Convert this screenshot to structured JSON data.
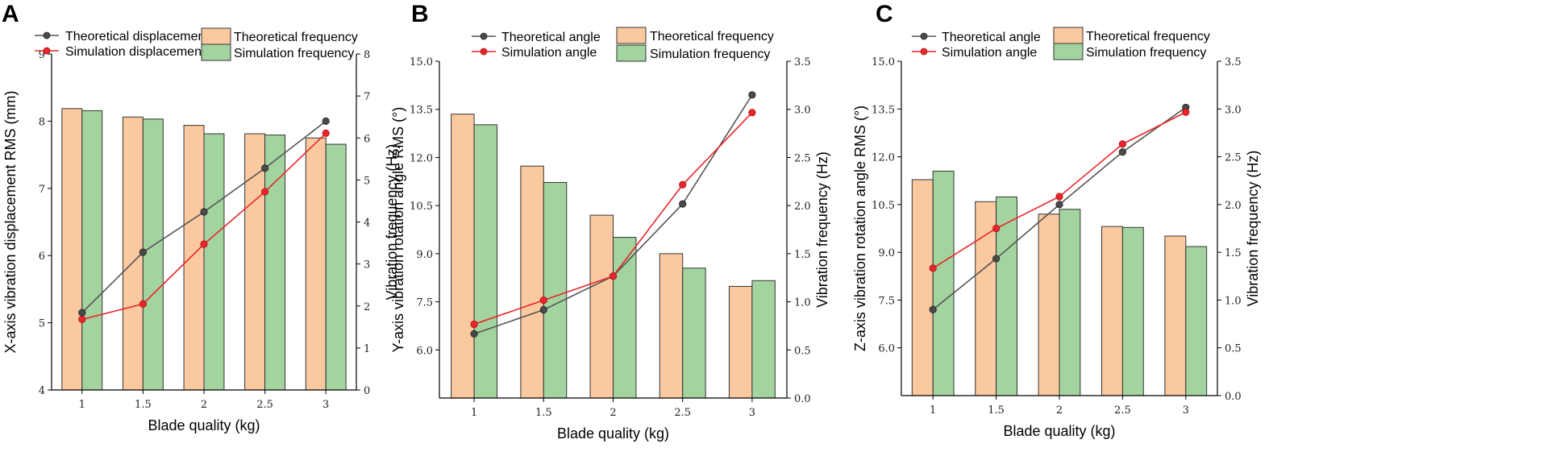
{
  "chart_data": [
    {
      "type": "bar",
      "panel": "A",
      "categories": [
        "1",
        "1.5",
        "2",
        "2.5",
        "3"
      ],
      "xlabel": "Blade quality (kg)",
      "ylabel": "X-axis vibration displacement RMS (mm)",
      "y2label": "Vibration frequency (Hz)",
      "ylim": [
        4,
        9
      ],
      "yticks": [
        "4",
        "5",
        "6",
        "7",
        "8",
        "9"
      ],
      "y2lim": [
        0,
        8
      ],
      "y2ticks": [
        "0",
        "1",
        "2",
        "3",
        "4",
        "5",
        "6",
        "7",
        "8"
      ],
      "bars": [
        {
          "name": "Theoretical frequency",
          "axis": "right",
          "color": "#fbc99f",
          "values": [
            6.7,
            6.5,
            6.3,
            6.1,
            6.0
          ]
        },
        {
          "name": "Simulation frequency",
          "axis": "right",
          "color": "#a3d49f",
          "values": [
            6.65,
            6.45,
            6.1,
            6.07,
            5.85
          ]
        }
      ],
      "lines": [
        {
          "name": "Theoretical displacement",
          "axis": "left",
          "color": "#555555",
          "values": [
            5.15,
            6.05,
            6.65,
            7.3,
            8.0
          ]
        },
        {
          "name": "Simulation displacement",
          "axis": "left",
          "color": "#e8262b",
          "values": [
            5.05,
            5.28,
            6.17,
            6.95,
            7.82
          ]
        }
      ]
    },
    {
      "type": "bar",
      "panel": "B",
      "categories": [
        "1",
        "1.5",
        "2",
        "2.5",
        "3"
      ],
      "xlabel": "Blade quality (kg)",
      "ylabel": "Y-axis vibration rotation angle RMS (°)",
      "y2label": "Vibration frequency (Hz)",
      "ylim": [
        4.5,
        15.0
      ],
      "yticks": [
        "6.0",
        "7.5",
        "9.0",
        "10.5",
        "12.0",
        "13.5",
        "15.0"
      ],
      "y2lim": [
        0.0,
        3.5
      ],
      "y2ticks": [
        "0.0",
        "0.5",
        "1.0",
        "1.5",
        "2.0",
        "2.5",
        "3.0",
        "3.5"
      ],
      "bars": [
        {
          "name": "Theoretical frequency",
          "axis": "right",
          "color": "#fbc99f",
          "values": [
            2.95,
            2.41,
            1.9,
            1.5,
            1.16
          ]
        },
        {
          "name": "Simulation frequency",
          "axis": "right",
          "color": "#a3d49f",
          "values": [
            2.84,
            2.24,
            1.67,
            1.35,
            1.22
          ]
        }
      ],
      "lines": [
        {
          "name": "Theoretical angle",
          "axis": "left",
          "color": "#555555",
          "values": [
            6.5,
            7.25,
            8.3,
            10.55,
            13.95
          ]
        },
        {
          "name": "Simulation angle",
          "axis": "left",
          "color": "#e8262b",
          "values": [
            6.8,
            7.55,
            8.3,
            11.15,
            13.4
          ]
        }
      ]
    },
    {
      "type": "bar",
      "panel": "C",
      "categories": [
        "1",
        "1.5",
        "2",
        "2.5",
        "3"
      ],
      "xlabel": "Blade quality (kg)",
      "ylabel": "Z-axis vibration rotation angle RMS (°)",
      "y2label": "Vibration frequency (Hz)",
      "ylim": [
        4.5,
        15.0
      ],
      "yticks": [
        "6.0",
        "7.5",
        "9.0",
        "10.5",
        "12.0",
        "13.5",
        "15.0"
      ],
      "y2lim": [
        0.0,
        3.5
      ],
      "y2ticks": [
        "0.0",
        "0.5",
        "1.0",
        "1.5",
        "2.0",
        "2.5",
        "3.0",
        "3.5"
      ],
      "bars": [
        {
          "name": "Theoretical frequency",
          "axis": "right",
          "color": "#fbc99f",
          "values": [
            2.26,
            2.03,
            1.9,
            1.77,
            1.67
          ]
        },
        {
          "name": "Simulation frequency",
          "axis": "right",
          "color": "#a3d49f",
          "values": [
            2.35,
            2.08,
            1.95,
            1.76,
            1.56
          ]
        }
      ],
      "lines": [
        {
          "name": "Theoretical angle",
          "axis": "left",
          "color": "#555555",
          "values": [
            7.2,
            8.8,
            10.5,
            12.15,
            13.55
          ]
        },
        {
          "name": "Simulation angle",
          "axis": "left",
          "color": "#e8262b",
          "values": [
            8.5,
            9.75,
            10.75,
            12.4,
            13.4
          ]
        }
      ]
    }
  ]
}
